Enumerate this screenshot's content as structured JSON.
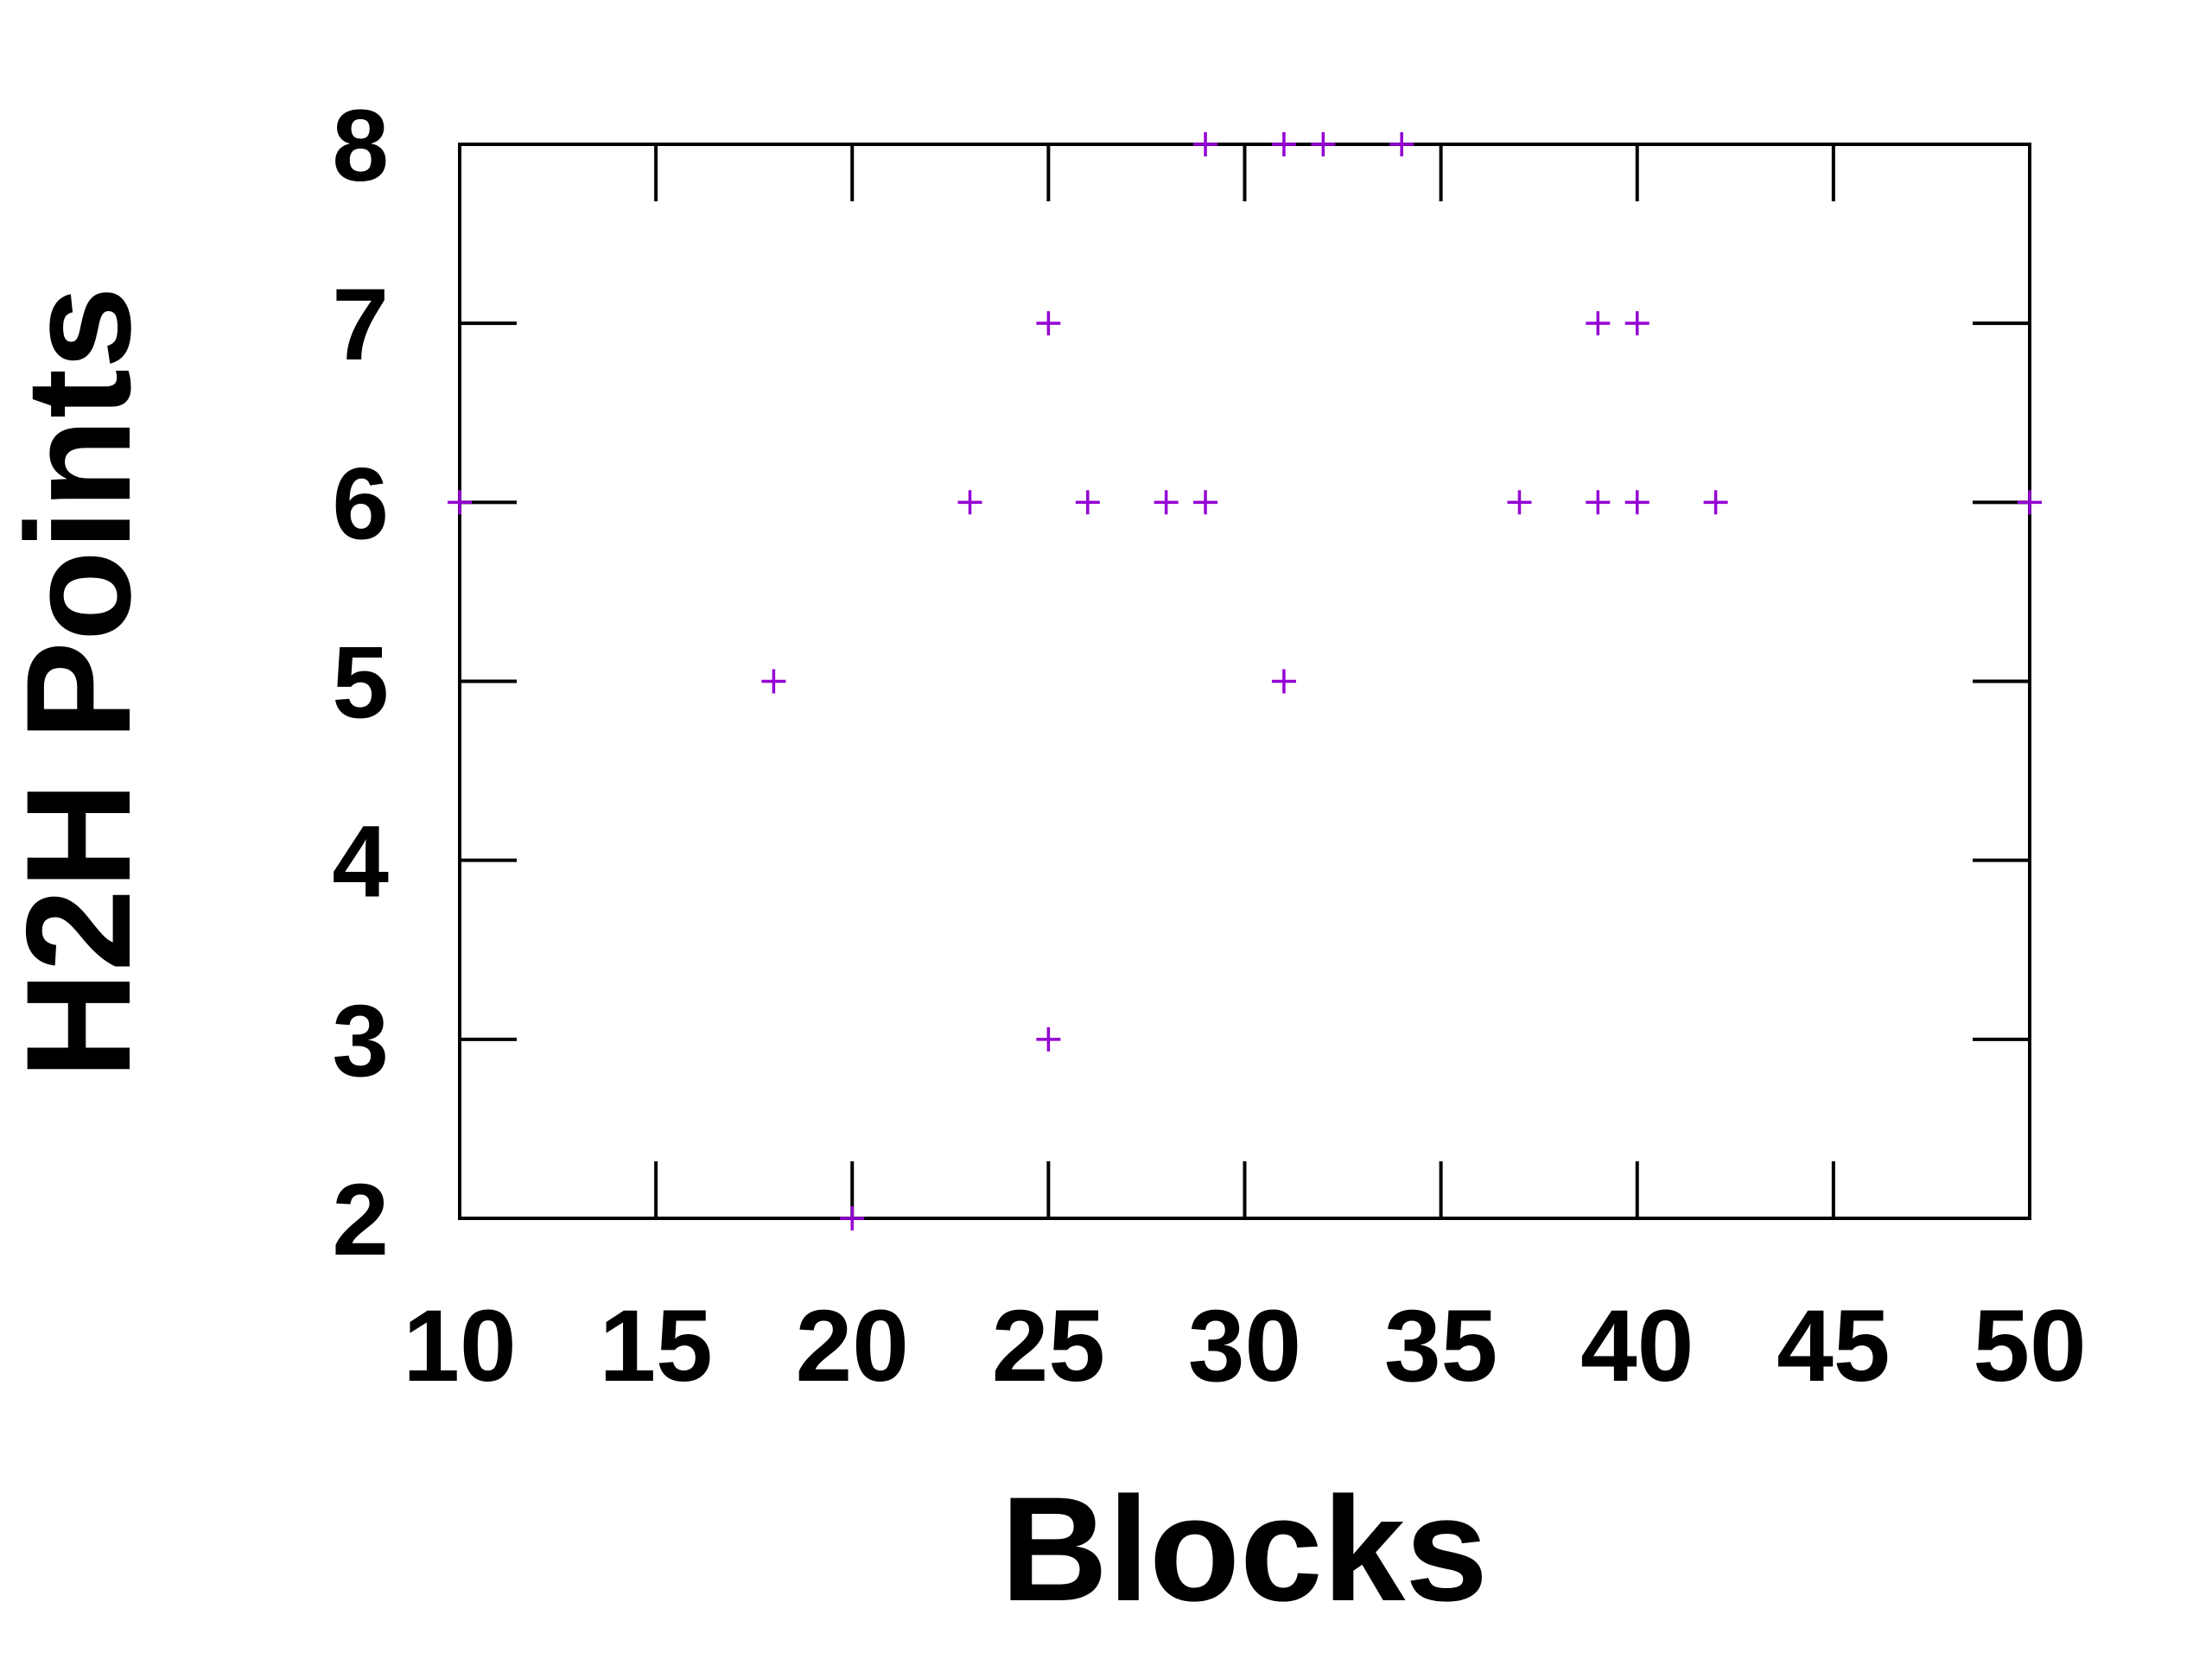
{
  "chart_data": {
    "type": "scatter",
    "title": "",
    "xlabel": "Blocks",
    "ylabel": "H2H Points",
    "xlim": [
      10,
      50
    ],
    "ylim": [
      2,
      8
    ],
    "x_ticks": [
      10,
      15,
      20,
      25,
      30,
      35,
      40,
      45,
      50
    ],
    "y_ticks": [
      2,
      3,
      4,
      5,
      6,
      7,
      8
    ],
    "grid": false,
    "legend": "none",
    "marker": "plus",
    "color": "#9400d3",
    "series": [
      {
        "points": [
          {
            "x": 10,
            "y": 6
          },
          {
            "x": 18,
            "y": 5
          },
          {
            "x": 20,
            "y": 2
          },
          {
            "x": 23,
            "y": 6
          },
          {
            "x": 25,
            "y": 7
          },
          {
            "x": 25,
            "y": 3
          },
          {
            "x": 26,
            "y": 6
          },
          {
            "x": 28,
            "y": 6
          },
          {
            "x": 29,
            "y": 6
          },
          {
            "x": 29,
            "y": 8
          },
          {
            "x": 31,
            "y": 8
          },
          {
            "x": 31,
            "y": 5
          },
          {
            "x": 32,
            "y": 8
          },
          {
            "x": 34,
            "y": 8
          },
          {
            "x": 37,
            "y": 6
          },
          {
            "x": 39,
            "y": 7
          },
          {
            "x": 39,
            "y": 6
          },
          {
            "x": 40,
            "y": 7
          },
          {
            "x": 40,
            "y": 6
          },
          {
            "x": 42,
            "y": 6
          },
          {
            "x": 50,
            "y": 6
          }
        ]
      }
    ]
  }
}
